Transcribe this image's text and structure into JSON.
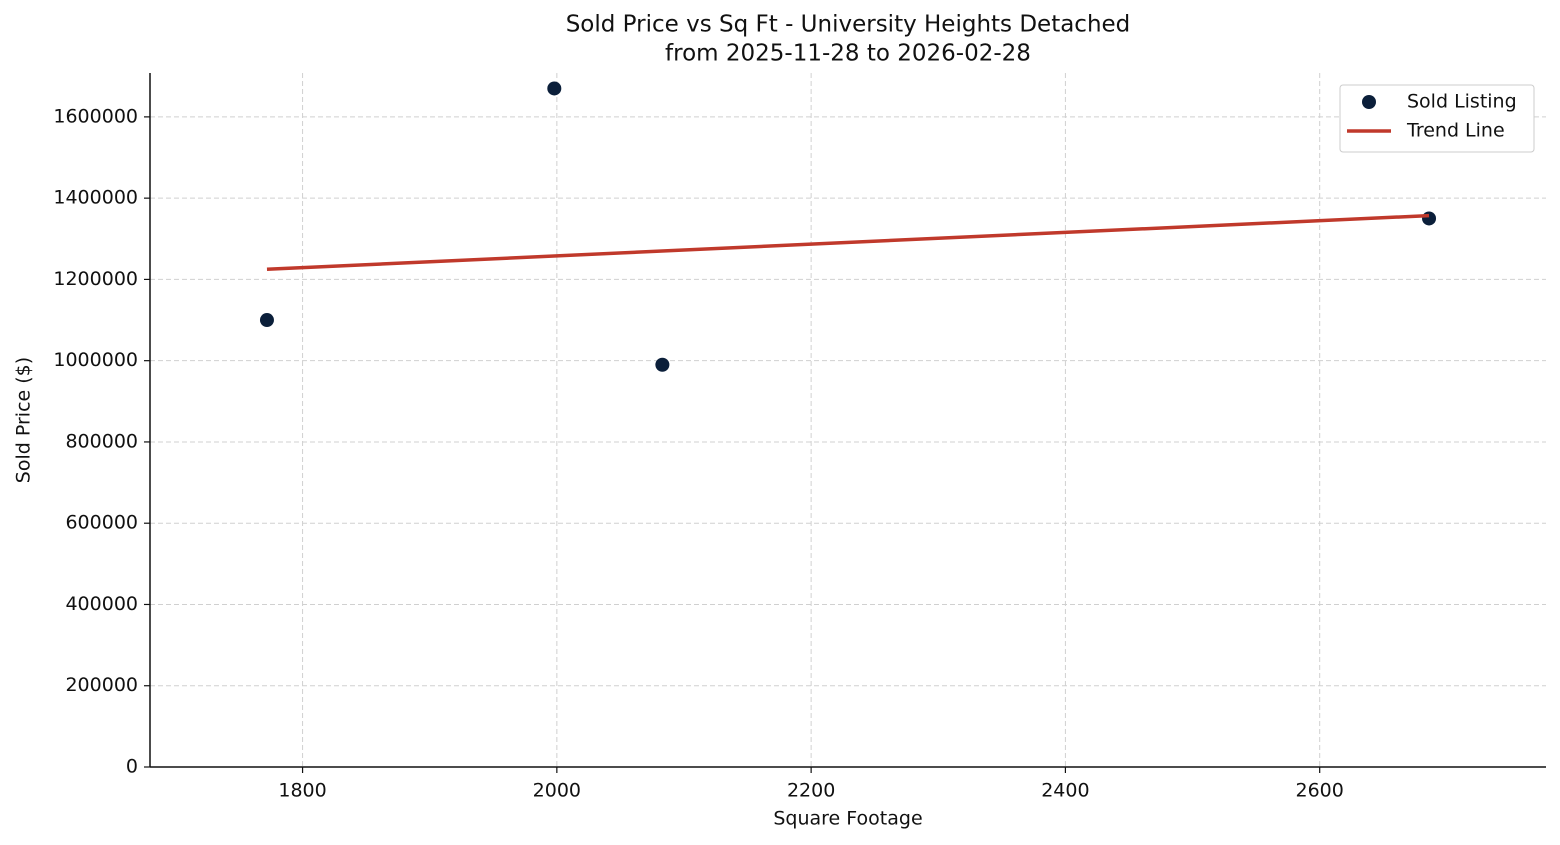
{
  "chart_data": {
    "type": "scatter",
    "title": "Sold Price vs Sq Ft - University Heights Detached",
    "subtitle": "from 2025-11-28 to 2026-02-28",
    "x_label": "Square Footage",
    "y_label": "Sold Price ($)",
    "xlim": [
      1680,
      2778
    ],
    "xticks": [
      1800,
      2000,
      2200,
      2400,
      2600
    ],
    "ylim": [
      0,
      1708000
    ],
    "yticks": [
      0,
      200000,
      400000,
      600000,
      800000,
      1000000,
      1200000,
      1400000,
      1600000
    ],
    "grid": true,
    "legend": "upper right",
    "series": [
      {
        "name": "Sold Listing",
        "type": "scatter",
        "color": "#0b1f3a",
        "x": [
          1772,
          1998,
          2083,
          2686
        ],
        "values": [
          1100000,
          1670000,
          990000,
          1350000
        ]
      },
      {
        "name": "Trend Line",
        "type": "line",
        "color": "#c0392b",
        "x": [
          1772,
          2686
        ],
        "values": [
          1225000,
          1357000
        ]
      }
    ]
  }
}
